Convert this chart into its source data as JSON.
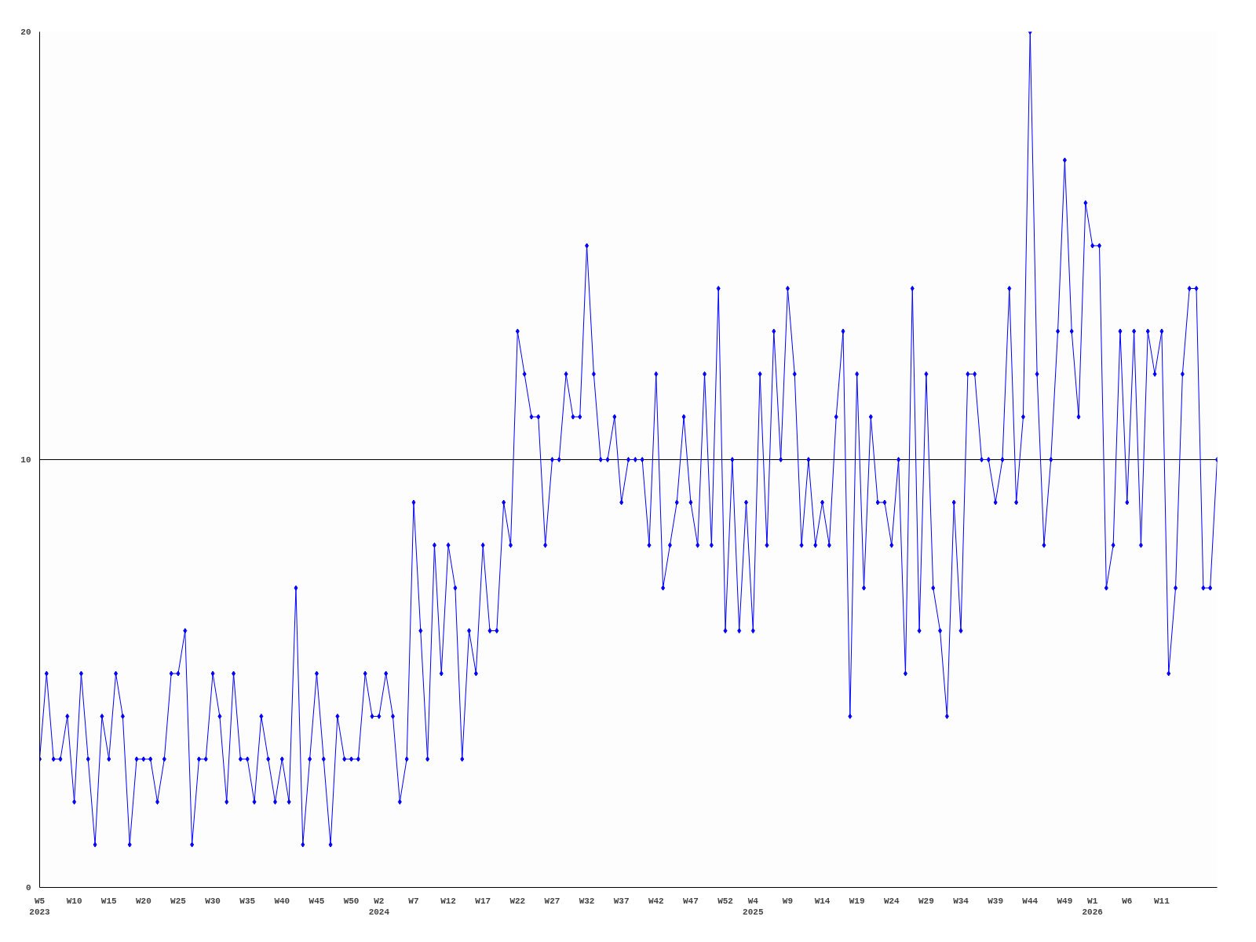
{
  "chart_data": {
    "type": "line",
    "categories": [
      "W5\n2023",
      null,
      null,
      null,
      null,
      "W10",
      null,
      null,
      null,
      null,
      "W15",
      null,
      null,
      null,
      null,
      "W20",
      null,
      null,
      null,
      null,
      "W25",
      null,
      null,
      null,
      null,
      "W30",
      null,
      null,
      null,
      null,
      "W35",
      null,
      null,
      null,
      null,
      "W40",
      null,
      null,
      null,
      null,
      "W45",
      null,
      null,
      null,
      null,
      "W50",
      null,
      null,
      null,
      "W2\n2024",
      null,
      null,
      null,
      null,
      "W7",
      null,
      null,
      null,
      null,
      "W12",
      null,
      null,
      null,
      null,
      "W17",
      null,
      null,
      null,
      null,
      "W22",
      null,
      null,
      null,
      null,
      "W27",
      null,
      null,
      null,
      null,
      "W32",
      null,
      null,
      null,
      null,
      "W37",
      null,
      null,
      null,
      null,
      "W42",
      null,
      null,
      null,
      null,
      "W47",
      null,
      null,
      null,
      null,
      "W52",
      null,
      null,
      null,
      "W4\n2025",
      null,
      null,
      null,
      null,
      "W9",
      null,
      null,
      null,
      null,
      "W14",
      null,
      null,
      null,
      null,
      "W19",
      null,
      null,
      null,
      null,
      "W24",
      null,
      null,
      null,
      null,
      "W29",
      null,
      null,
      null,
      null,
      "W34",
      null,
      null,
      null,
      null,
      "W39",
      null,
      null,
      null,
      null,
      "W44",
      null,
      null,
      null,
      null,
      "W49",
      null,
      null,
      null,
      "W1\n2026",
      null,
      null,
      null,
      null,
      "W6",
      null,
      null,
      null,
      null,
      "W11",
      null,
      null,
      null,
      null,
      null,
      null,
      null,
      null
    ],
    "series": [
      {
        "color": "#0000ff",
        "values": [
          3,
          5,
          3,
          3,
          4,
          2,
          5,
          3,
          1,
          4,
          3,
          5,
          4,
          1,
          3,
          3,
          3,
          2,
          3,
          5,
          5,
          6,
          1,
          3,
          3,
          5,
          4,
          2,
          5,
          3,
          3,
          2,
          4,
          3,
          2,
          3,
          2,
          7,
          1,
          3,
          5,
          3,
          1,
          4,
          3,
          3,
          3,
          5,
          4,
          4,
          5,
          4,
          2,
          3,
          9,
          6,
          3,
          8,
          5,
          8,
          7,
          3,
          6,
          5,
          8,
          6,
          6,
          9,
          8,
          13,
          12,
          11,
          11,
          8,
          10,
          10,
          12,
          11,
          11,
          15,
          12,
          10,
          10,
          11,
          9,
          10,
          10,
          10,
          8,
          12,
          7,
          8,
          9,
          11,
          9,
          8,
          12,
          8,
          14,
          6,
          10,
          6,
          9,
          6,
          12,
          8,
          13,
          10,
          14,
          12,
          8,
          10,
          8,
          9,
          8,
          11,
          13,
          4,
          12,
          7,
          11,
          9,
          9,
          8,
          10,
          5,
          14,
          6,
          12,
          7,
          6,
          4,
          9,
          6,
          12,
          12,
          10,
          10,
          9,
          10,
          14,
          9,
          11,
          20,
          12,
          8,
          10,
          13,
          17,
          13,
          11,
          16,
          15,
          15,
          7,
          8,
          13,
          9,
          13,
          8,
          13,
          12,
          13,
          5,
          7,
          12,
          14,
          14,
          7,
          7,
          10
        ]
      }
    ],
    "ylim": [
      0,
      20
    ],
    "yticks": [
      0,
      10,
      20
    ],
    "grid": "y",
    "marker": "diamond",
    "line_style": "solid"
  }
}
